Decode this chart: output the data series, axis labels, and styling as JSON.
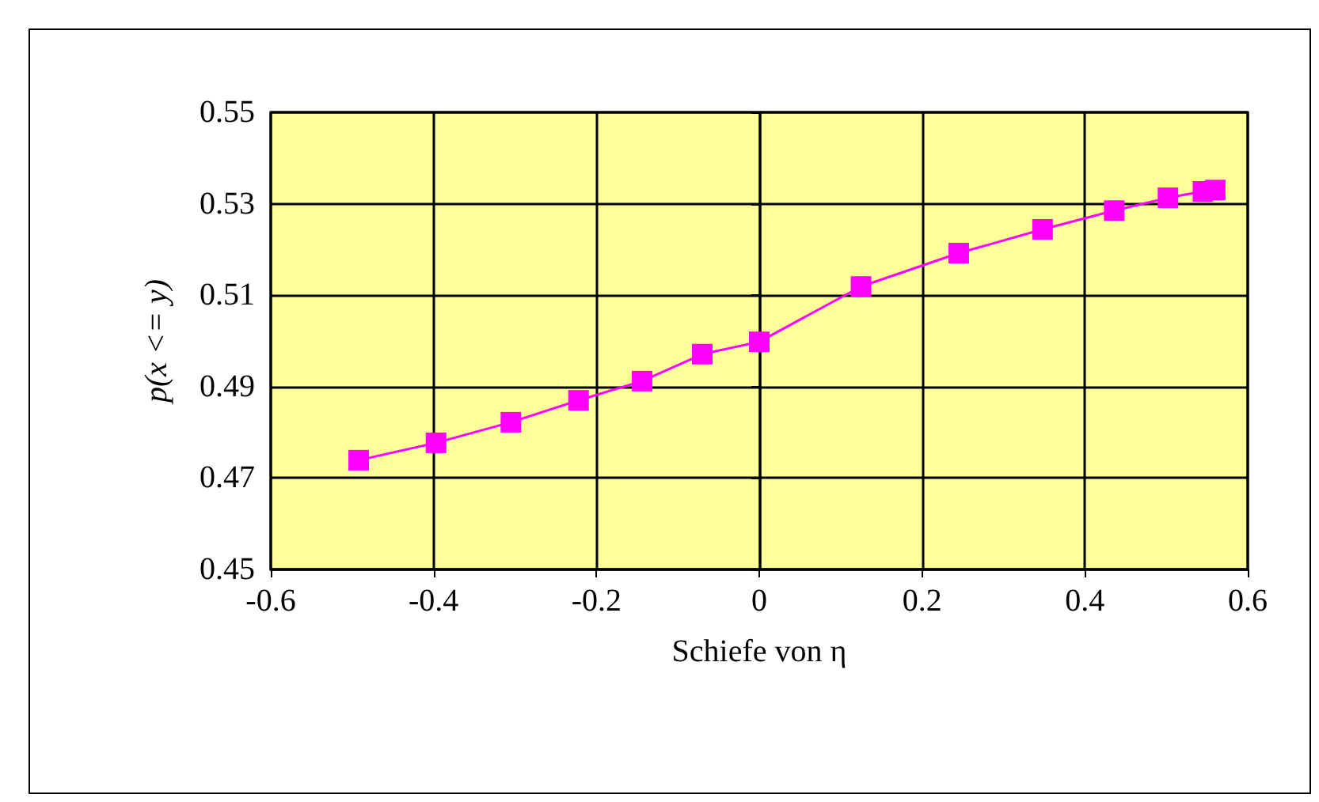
{
  "chart_data": {
    "type": "line",
    "xlabel": "Schiefe von η",
    "ylabel": "p(x <= y)",
    "x": [
      -0.492,
      -0.397,
      -0.305,
      -0.222,
      -0.144,
      -0.07,
      0.0,
      0.125,
      0.245,
      0.348,
      0.436,
      0.502,
      0.545,
      0.56
    ],
    "series": [
      {
        "color": "#ff00ff",
        "values": [
          0.4739,
          0.4777,
          0.4822,
          0.487,
          0.4912,
          0.4971,
          0.4998,
          0.5119,
          0.5192,
          0.5244,
          0.5285,
          0.5313,
          0.5327,
          0.533
        ]
      }
    ],
    "xlim": [
      -0.6,
      0.6
    ],
    "xticks": [
      -0.6,
      -0.4,
      -0.2,
      0,
      0.2,
      0.4,
      0.6
    ],
    "ylim": [
      0.45,
      0.55
    ],
    "yticks": [
      0.45,
      0.47,
      0.49,
      0.51,
      0.53,
      0.55
    ],
    "grid": true,
    "marker": "square",
    "line_style": "solid"
  }
}
